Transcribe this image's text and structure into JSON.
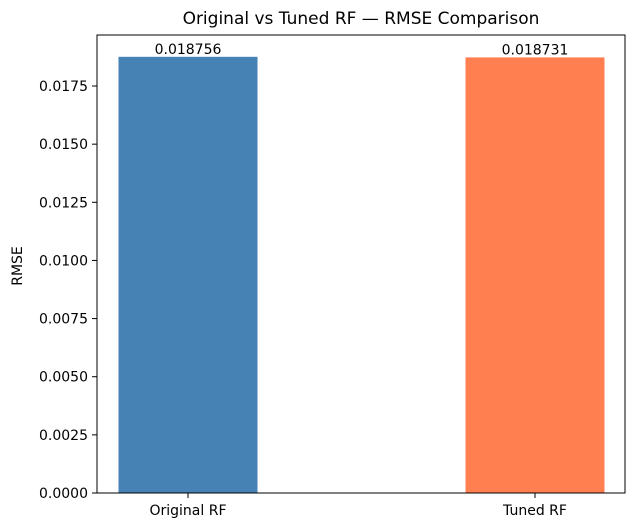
{
  "chart_data": {
    "type": "bar",
    "title": "Original vs Tuned RF — RMSE Comparison",
    "xlabel": "",
    "ylabel": "RMSE",
    "categories": [
      "Original RF",
      "Tuned RF"
    ],
    "values": [
      0.018756,
      0.018731
    ],
    "data_labels": [
      "0.018756",
      "0.018731"
    ],
    "bar_colors": [
      "#4682b4",
      "#ff7f50"
    ],
    "ylim": [
      0,
      0.019694
    ],
    "yticks": [
      0,
      0.0025,
      0.005,
      0.0075,
      0.01,
      0.0125,
      0.015,
      0.0175
    ],
    "ytick_labels": [
      "0.0000",
      "0.0025",
      "0.0050",
      "0.0075",
      "0.0100",
      "0.0125",
      "0.0150",
      "0.0175"
    ],
    "grid": false,
    "legend": "none"
  }
}
